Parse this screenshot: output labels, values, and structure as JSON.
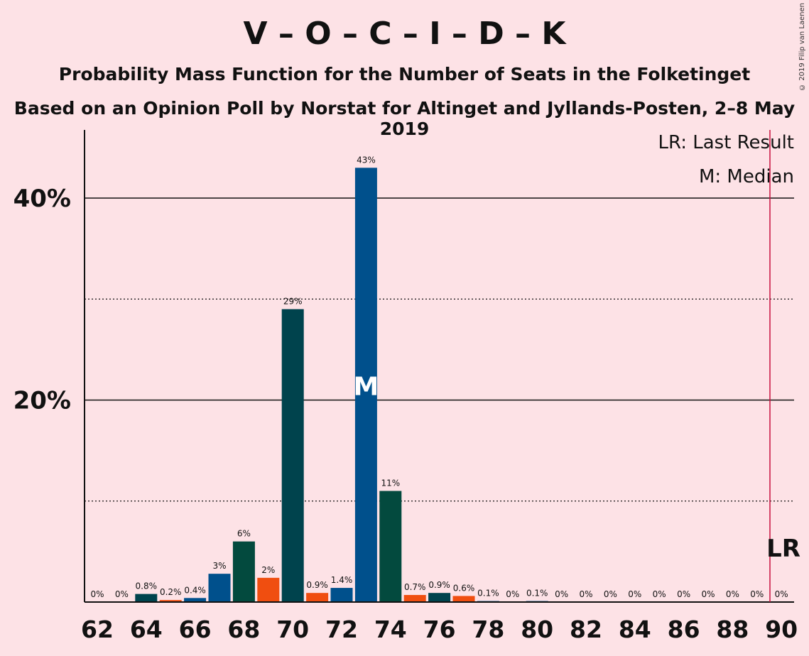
{
  "title": "V – O – C – I – D – K",
  "subtitle": "Probability Mass Function for the Number of Seats in the Folketinget",
  "subtitle2": "Based on an Opinion Poll by Norstat for Altinget and Jyllands-Posten, 2–8 May 2019",
  "copyright": "© 2019 Filip van Laenen",
  "legend": {
    "lr": "LR: Last Result",
    "median": "M: Median"
  },
  "markers": {
    "median_label": "M",
    "lr_label": "LR",
    "median_seat": 73,
    "last_result_seat": 90
  },
  "colors": {
    "background": "#fde2e6",
    "blue": "#00508c",
    "darkteal": "#00434d",
    "green": "#034a3e",
    "orange": "#f04e10",
    "lr_line": "#c8103e"
  },
  "chart_data": {
    "type": "bar",
    "xlim": [
      62,
      90
    ],
    "ylim": [
      0,
      47
    ],
    "y_ticks": [
      {
        "value": 20,
        "label": "20%"
      },
      {
        "value": 40,
        "label": "40%"
      }
    ],
    "y_dotted": [
      10,
      30
    ],
    "x_ticks": [
      62,
      64,
      66,
      68,
      70,
      72,
      74,
      76,
      78,
      80,
      82,
      84,
      86,
      88,
      90
    ],
    "bars": [
      {
        "seats": 62,
        "value": 0,
        "label": "0%",
        "color": "darkteal"
      },
      {
        "seats": 63,
        "value": 0,
        "label": "0%",
        "color": "darkteal"
      },
      {
        "seats": 64,
        "value": 0.8,
        "label": "0.8%",
        "color": "darkteal"
      },
      {
        "seats": 65,
        "value": 0.2,
        "label": "0.2%",
        "color": "orange"
      },
      {
        "seats": 66,
        "value": 0.4,
        "label": "0.4%",
        "color": "blue"
      },
      {
        "seats": 67,
        "value": 2.8,
        "label": "3%",
        "color": "blue"
      },
      {
        "seats": 68,
        "value": 6,
        "label": "6%",
        "color": "green"
      },
      {
        "seats": 69,
        "value": 2.4,
        "label": "2%",
        "color": "orange"
      },
      {
        "seats": 70,
        "value": 29,
        "label": "29%",
        "color": "darkteal"
      },
      {
        "seats": 71,
        "value": 0.9,
        "label": "0.9%",
        "color": "orange"
      },
      {
        "seats": 72,
        "value": 1.4,
        "label": "1.4%",
        "color": "blue"
      },
      {
        "seats": 73,
        "value": 43,
        "label": "43%",
        "color": "blue"
      },
      {
        "seats": 74,
        "value": 11,
        "label": "11%",
        "color": "green"
      },
      {
        "seats": 75,
        "value": 0.7,
        "label": "0.7%",
        "color": "orange"
      },
      {
        "seats": 76,
        "value": 0.9,
        "label": "0.9%",
        "color": "darkteal"
      },
      {
        "seats": 77,
        "value": 0.6,
        "label": "0.6%",
        "color": "orange"
      },
      {
        "seats": 78,
        "value": 0.1,
        "label": "0.1%",
        "color": "blue"
      },
      {
        "seats": 79,
        "value": 0,
        "label": "0%",
        "color": "blue"
      },
      {
        "seats": 80,
        "value": 0.1,
        "label": "0.1%",
        "color": "blue"
      },
      {
        "seats": 81,
        "value": 0,
        "label": "0%",
        "color": "blue"
      },
      {
        "seats": 82,
        "value": 0,
        "label": "0%",
        "color": "blue"
      },
      {
        "seats": 83,
        "value": 0,
        "label": "0%",
        "color": "blue"
      },
      {
        "seats": 84,
        "value": 0,
        "label": "0%",
        "color": "blue"
      },
      {
        "seats": 85,
        "value": 0,
        "label": "0%",
        "color": "blue"
      },
      {
        "seats": 86,
        "value": 0,
        "label": "0%",
        "color": "blue"
      },
      {
        "seats": 87,
        "value": 0,
        "label": "0%",
        "color": "blue"
      },
      {
        "seats": 88,
        "value": 0,
        "label": "0%",
        "color": "blue"
      },
      {
        "seats": 89,
        "value": 0,
        "label": "0%",
        "color": "blue"
      },
      {
        "seats": 90,
        "value": 0,
        "label": "0%",
        "color": "blue"
      }
    ]
  }
}
